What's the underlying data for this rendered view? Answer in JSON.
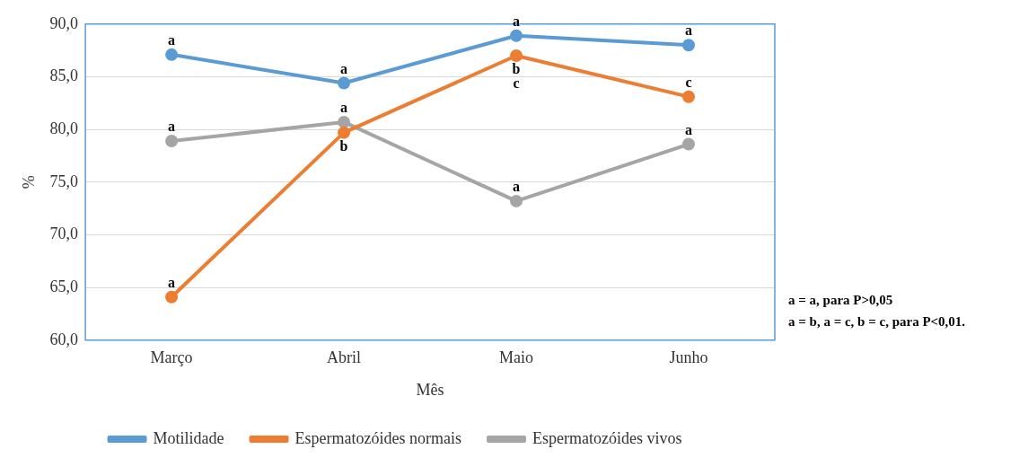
{
  "chart_data": {
    "type": "line",
    "xlabel": "Mês",
    "ylabel": "%",
    "categories": [
      "Março",
      "Abril",
      "Maio",
      "Junho"
    ],
    "series": [
      {
        "name": "Motilidade",
        "color": "#5b9bd5",
        "values": [
          87.1,
          84.4,
          88.9,
          88.0
        ]
      },
      {
        "name": "Espermatozóides normais",
        "color": "#ed7d31",
        "values": [
          64.1,
          79.7,
          87.0,
          83.1
        ]
      },
      {
        "name": "Espermatozóides vivos",
        "color": "#a5a5a5",
        "values": [
          78.9,
          80.7,
          73.2,
          78.6
        ]
      }
    ],
    "ylim": [
      60,
      90
    ],
    "yticks": [
      {
        "value": 60,
        "label": "60,0"
      },
      {
        "value": 65,
        "label": "65,0"
      },
      {
        "value": 70,
        "label": "70,0"
      },
      {
        "value": 75,
        "label": "75,0"
      },
      {
        "value": 80,
        "label": "80,0"
      },
      {
        "value": 85,
        "label": "85,0"
      },
      {
        "value": 90,
        "label": "90,0"
      }
    ],
    "grid": "y",
    "legend": "bottom",
    "marker": "circle",
    "line_style": "solid",
    "annotations": [
      {
        "text": "a",
        "x": "Março",
        "y": 87.1
      },
      {
        "text": "a",
        "x": "Abril",
        "y": 84.4
      },
      {
        "text": "a",
        "x": "Maio",
        "y": 88.9
      },
      {
        "text": "a",
        "x": "Junho",
        "y": 88.0
      },
      {
        "text": "a",
        "x": "Março",
        "y": 64.1
      },
      {
        "text": "b",
        "x": "Abril",
        "y": 79.7
      },
      {
        "text": "b",
        "x": "Maio",
        "y": 87.0
      },
      {
        "text": "c",
        "x": "Maio",
        "y": 87.0
      },
      {
        "text": "c",
        "x": "Junho",
        "y": 83.1
      },
      {
        "text": "a",
        "x": "Março",
        "y": 78.9
      },
      {
        "text": "a",
        "x": "Abril",
        "y": 80.7
      },
      {
        "text": "a",
        "x": "Maio",
        "y": 73.2
      },
      {
        "text": "a",
        "x": "Junho",
        "y": 78.6
      },
      "a = a, para P>0,05",
      "a = b, a = c, b = c, para P<0,01."
    ]
  }
}
